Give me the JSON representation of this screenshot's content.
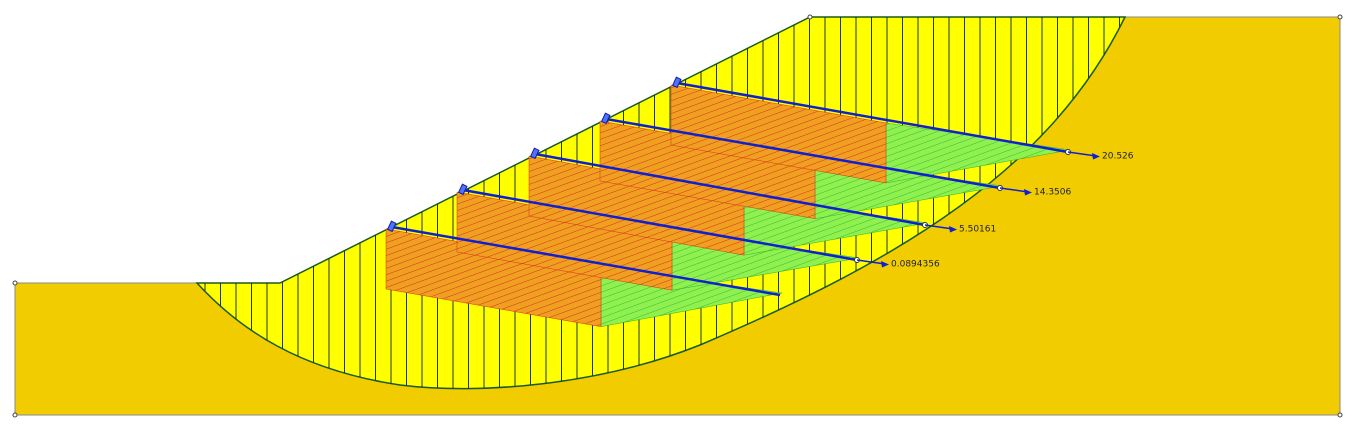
{
  "anchors": [
    {
      "label": "0.0894356"
    },
    {
      "label": "5.50161"
    },
    {
      "label": "14.3506"
    },
    {
      "label": "20.526"
    }
  ]
}
